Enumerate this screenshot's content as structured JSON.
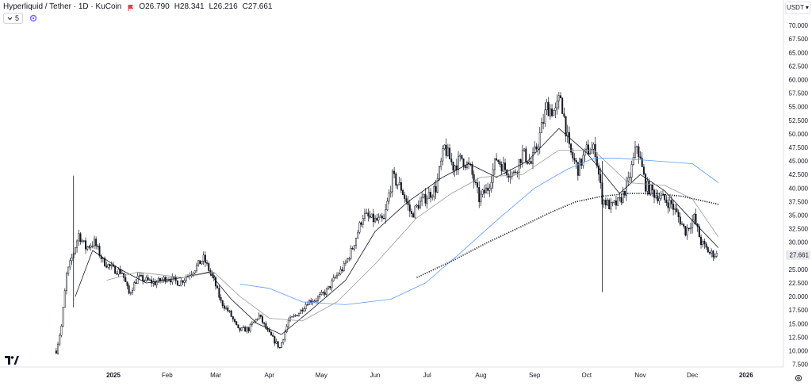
{
  "header": {
    "title": "Hyperliquid / Tether · 1D · KuCoin",
    "open": "O26.790",
    "high": "H28.341",
    "low": "L26.216",
    "close": "C27.661",
    "indicator_count": "5",
    "currency": "USDT"
  },
  "colors": {
    "candle": "#131722",
    "ma_fast": "#131722",
    "ma_slow": "#9b9b9b",
    "ma_blue": "#5b9cf4",
    "ma_dotted": "#131722",
    "label_bg": "#e9eaee"
  },
  "chart_data": {
    "type": "candlestick",
    "title": "Hyperliquid / Tether · 1D · KuCoin",
    "x_ticks": [
      "2025",
      "Feb",
      "Mar",
      "Apr",
      "May",
      "Jun",
      "Jul",
      "Aug",
      "Sep",
      "Oct",
      "Nov",
      "Dec",
      "2026"
    ],
    "y_ticks": [
      "7.500",
      "10.000",
      "12.500",
      "15.000",
      "17.500",
      "20.000",
      "22.500",
      "25.000",
      "27.500",
      "30.000",
      "32.500",
      "35.000",
      "37.500",
      "40.000",
      "42.500",
      "45.000",
      "47.500",
      "50.000",
      "52.500",
      "55.000",
      "57.500",
      "60.000",
      "62.500",
      "65.000",
      "67.500",
      "70.000"
    ],
    "ylim": [
      7.5,
      70
    ],
    "last_price": "27.661",
    "price_path": [
      {
        "date": "2024-11-29",
        "price": 10.0
      },
      {
        "date": "2024-12-02",
        "price": 14.5
      },
      {
        "date": "2024-12-05",
        "price": 24.0
      },
      {
        "date": "2024-12-08",
        "price": 27.0
      },
      {
        "date": "2024-12-12",
        "price": 31.5
      },
      {
        "date": "2024-12-16",
        "price": 29.0
      },
      {
        "date": "2024-12-21",
        "price": 30.0
      },
      {
        "date": "2024-12-26",
        "price": 26.5
      },
      {
        "date": "2025-01-01",
        "price": 25.0
      },
      {
        "date": "2025-01-06",
        "price": 24.5
      },
      {
        "date": "2025-01-10",
        "price": 20.5
      },
      {
        "date": "2025-01-15",
        "price": 23.5
      },
      {
        "date": "2025-01-20",
        "price": 23.0
      },
      {
        "date": "2025-01-25",
        "price": 22.5
      },
      {
        "date": "2025-02-01",
        "price": 23.5
      },
      {
        "date": "2025-02-08",
        "price": 22.5
      },
      {
        "date": "2025-02-15",
        "price": 24.5
      },
      {
        "date": "2025-02-22",
        "price": 27.0
      },
      {
        "date": "2025-02-28",
        "price": 23.0
      },
      {
        "date": "2025-03-04",
        "price": 19.0
      },
      {
        "date": "2025-03-09",
        "price": 17.0
      },
      {
        "date": "2025-03-14",
        "price": 13.8
      },
      {
        "date": "2025-03-20",
        "price": 14.0
      },
      {
        "date": "2025-03-26",
        "price": 16.5
      },
      {
        "date": "2025-03-31",
        "price": 13.5
      },
      {
        "date": "2025-04-07",
        "price": 10.5
      },
      {
        "date": "2025-04-12",
        "price": 15.5
      },
      {
        "date": "2025-04-18",
        "price": 17.0
      },
      {
        "date": "2025-04-23",
        "price": 19.0
      },
      {
        "date": "2025-04-28",
        "price": 19.5
      },
      {
        "date": "2025-05-04",
        "price": 21.0
      },
      {
        "date": "2025-05-09",
        "price": 23.5
      },
      {
        "date": "2025-05-14",
        "price": 25.5
      },
      {
        "date": "2025-05-19",
        "price": 29.0
      },
      {
        "date": "2025-05-25",
        "price": 35.0
      },
      {
        "date": "2025-06-01",
        "price": 34.0
      },
      {
        "date": "2025-06-06",
        "price": 34.0
      },
      {
        "date": "2025-06-11",
        "price": 42.0
      },
      {
        "date": "2025-06-16",
        "price": 40.0
      },
      {
        "date": "2025-06-22",
        "price": 35.0
      },
      {
        "date": "2025-06-26",
        "price": 37.0
      },
      {
        "date": "2025-07-01",
        "price": 38.5
      },
      {
        "date": "2025-07-06",
        "price": 40.0
      },
      {
        "date": "2025-07-11",
        "price": 47.5
      },
      {
        "date": "2025-07-16",
        "price": 44.0
      },
      {
        "date": "2025-07-21",
        "price": 45.5
      },
      {
        "date": "2025-07-26",
        "price": 43.5
      },
      {
        "date": "2025-07-31",
        "price": 38.0
      },
      {
        "date": "2025-08-05",
        "price": 40.0
      },
      {
        "date": "2025-08-10",
        "price": 45.5
      },
      {
        "date": "2025-08-15",
        "price": 43.5
      },
      {
        "date": "2025-08-20",
        "price": 42.5
      },
      {
        "date": "2025-08-25",
        "price": 46.5
      },
      {
        "date": "2025-08-30",
        "price": 44.5
      },
      {
        "date": "2025-09-03",
        "price": 48.5
      },
      {
        "date": "2025-09-08",
        "price": 55.0
      },
      {
        "date": "2025-09-13",
        "price": 54.0
      },
      {
        "date": "2025-09-16",
        "price": 57.0
      },
      {
        "date": "2025-09-21",
        "price": 47.0
      },
      {
        "date": "2025-09-26",
        "price": 43.5
      },
      {
        "date": "2025-10-01",
        "price": 47.0
      },
      {
        "date": "2025-10-06",
        "price": 47.0
      },
      {
        "date": "2025-10-10",
        "price": 38.0
      },
      {
        "date": "2025-10-15",
        "price": 36.5
      },
      {
        "date": "2025-10-20",
        "price": 37.5
      },
      {
        "date": "2025-10-25",
        "price": 41.0
      },
      {
        "date": "2025-10-30",
        "price": 48.0
      },
      {
        "date": "2025-11-04",
        "price": 40.5
      },
      {
        "date": "2025-11-09",
        "price": 39.0
      },
      {
        "date": "2025-11-14",
        "price": 38.0
      },
      {
        "date": "2025-11-19",
        "price": 37.0
      },
      {
        "date": "2025-11-24",
        "price": 34.0
      },
      {
        "date": "2025-11-27",
        "price": 32.0
      },
      {
        "date": "2025-12-02",
        "price": 34.5
      },
      {
        "date": "2025-12-06",
        "price": 30.0
      },
      {
        "date": "2025-12-11",
        "price": 28.0
      },
      {
        "date": "2025-12-16",
        "price": 27.66
      }
    ],
    "series": [
      {
        "type": "moving-average",
        "style": "black solid thin",
        "values": [
          {
            "date": "2024-12-10",
            "price": 20.0
          },
          {
            "date": "2024-12-20",
            "price": 28.5
          },
          {
            "date": "2025-01-05",
            "price": 25.0
          },
          {
            "date": "2025-01-20",
            "price": 22.5
          },
          {
            "date": "2025-02-10",
            "price": 23.5
          },
          {
            "date": "2025-02-25",
            "price": 24.5
          },
          {
            "date": "2025-03-10",
            "price": 19.5
          },
          {
            "date": "2025-03-25",
            "price": 15.0
          },
          {
            "date": "2025-04-08",
            "price": 13.0
          },
          {
            "date": "2025-04-25",
            "price": 17.5
          },
          {
            "date": "2025-05-15",
            "price": 23.0
          },
          {
            "date": "2025-06-01",
            "price": 32.0
          },
          {
            "date": "2025-06-20",
            "price": 37.5
          },
          {
            "date": "2025-07-10",
            "price": 42.0
          },
          {
            "date": "2025-07-25",
            "price": 44.5
          },
          {
            "date": "2025-08-10",
            "price": 42.0
          },
          {
            "date": "2025-08-28",
            "price": 45.0
          },
          {
            "date": "2025-09-15",
            "price": 51.0
          },
          {
            "date": "2025-10-01",
            "price": 46.5
          },
          {
            "date": "2025-10-20",
            "price": 39.0
          },
          {
            "date": "2025-11-01",
            "price": 42.5
          },
          {
            "date": "2025-11-15",
            "price": 39.5
          },
          {
            "date": "2025-12-01",
            "price": 34.0
          },
          {
            "date": "2025-12-16",
            "price": 29.0
          }
        ]
      },
      {
        "type": "moving-average",
        "style": "gray solid thin",
        "values": [
          {
            "date": "2024-12-28",
            "price": 23.0
          },
          {
            "date": "2025-01-15",
            "price": 24.5
          },
          {
            "date": "2025-02-10",
            "price": 23.5
          },
          {
            "date": "2025-02-28",
            "price": 24.5
          },
          {
            "date": "2025-03-15",
            "price": 20.0
          },
          {
            "date": "2025-04-01",
            "price": 16.0
          },
          {
            "date": "2025-04-20",
            "price": 15.5
          },
          {
            "date": "2025-05-10",
            "price": 19.0
          },
          {
            "date": "2025-06-01",
            "price": 26.0
          },
          {
            "date": "2025-06-25",
            "price": 34.5
          },
          {
            "date": "2025-07-15",
            "price": 39.0
          },
          {
            "date": "2025-08-01",
            "price": 42.0
          },
          {
            "date": "2025-08-25",
            "price": 42.5
          },
          {
            "date": "2025-09-15",
            "price": 47.0
          },
          {
            "date": "2025-10-05",
            "price": 47.0
          },
          {
            "date": "2025-10-25",
            "price": 41.0
          },
          {
            "date": "2025-11-15",
            "price": 40.5
          },
          {
            "date": "2025-12-01",
            "price": 38.0
          },
          {
            "date": "2025-12-16",
            "price": 31.0
          }
        ]
      },
      {
        "type": "moving-average",
        "style": "blue solid thin",
        "values": [
          {
            "date": "2025-03-15",
            "price": 22.3
          },
          {
            "date": "2025-04-01",
            "price": 21.5
          },
          {
            "date": "2025-04-20",
            "price": 19.0
          },
          {
            "date": "2025-05-15",
            "price": 18.5
          },
          {
            "date": "2025-06-10",
            "price": 19.5
          },
          {
            "date": "2025-06-30",
            "price": 22.5
          },
          {
            "date": "2025-07-20",
            "price": 28.0
          },
          {
            "date": "2025-08-10",
            "price": 34.0
          },
          {
            "date": "2025-09-01",
            "price": 40.0
          },
          {
            "date": "2025-09-20",
            "price": 43.5
          },
          {
            "date": "2025-10-05",
            "price": 45.5
          },
          {
            "date": "2025-10-20",
            "price": 45.5
          },
          {
            "date": "2025-11-10",
            "price": 45.0
          },
          {
            "date": "2025-12-01",
            "price": 44.5
          },
          {
            "date": "2025-12-16",
            "price": 41.0
          }
        ]
      },
      {
        "type": "moving-average",
        "style": "black dotted",
        "values": [
          {
            "date": "2025-06-25",
            "price": 23.5
          },
          {
            "date": "2025-07-15",
            "price": 26.5
          },
          {
            "date": "2025-08-05",
            "price": 30.0
          },
          {
            "date": "2025-08-25",
            "price": 33.0
          },
          {
            "date": "2025-09-10",
            "price": 35.5
          },
          {
            "date": "2025-09-25",
            "price": 37.5
          },
          {
            "date": "2025-10-10",
            "price": 38.5
          },
          {
            "date": "2025-10-25",
            "price": 39.0
          },
          {
            "date": "2025-11-10",
            "price": 39.0
          },
          {
            "date": "2025-11-25",
            "price": 38.5
          },
          {
            "date": "2025-12-16",
            "price": 37.0
          }
        ]
      }
    ]
  }
}
